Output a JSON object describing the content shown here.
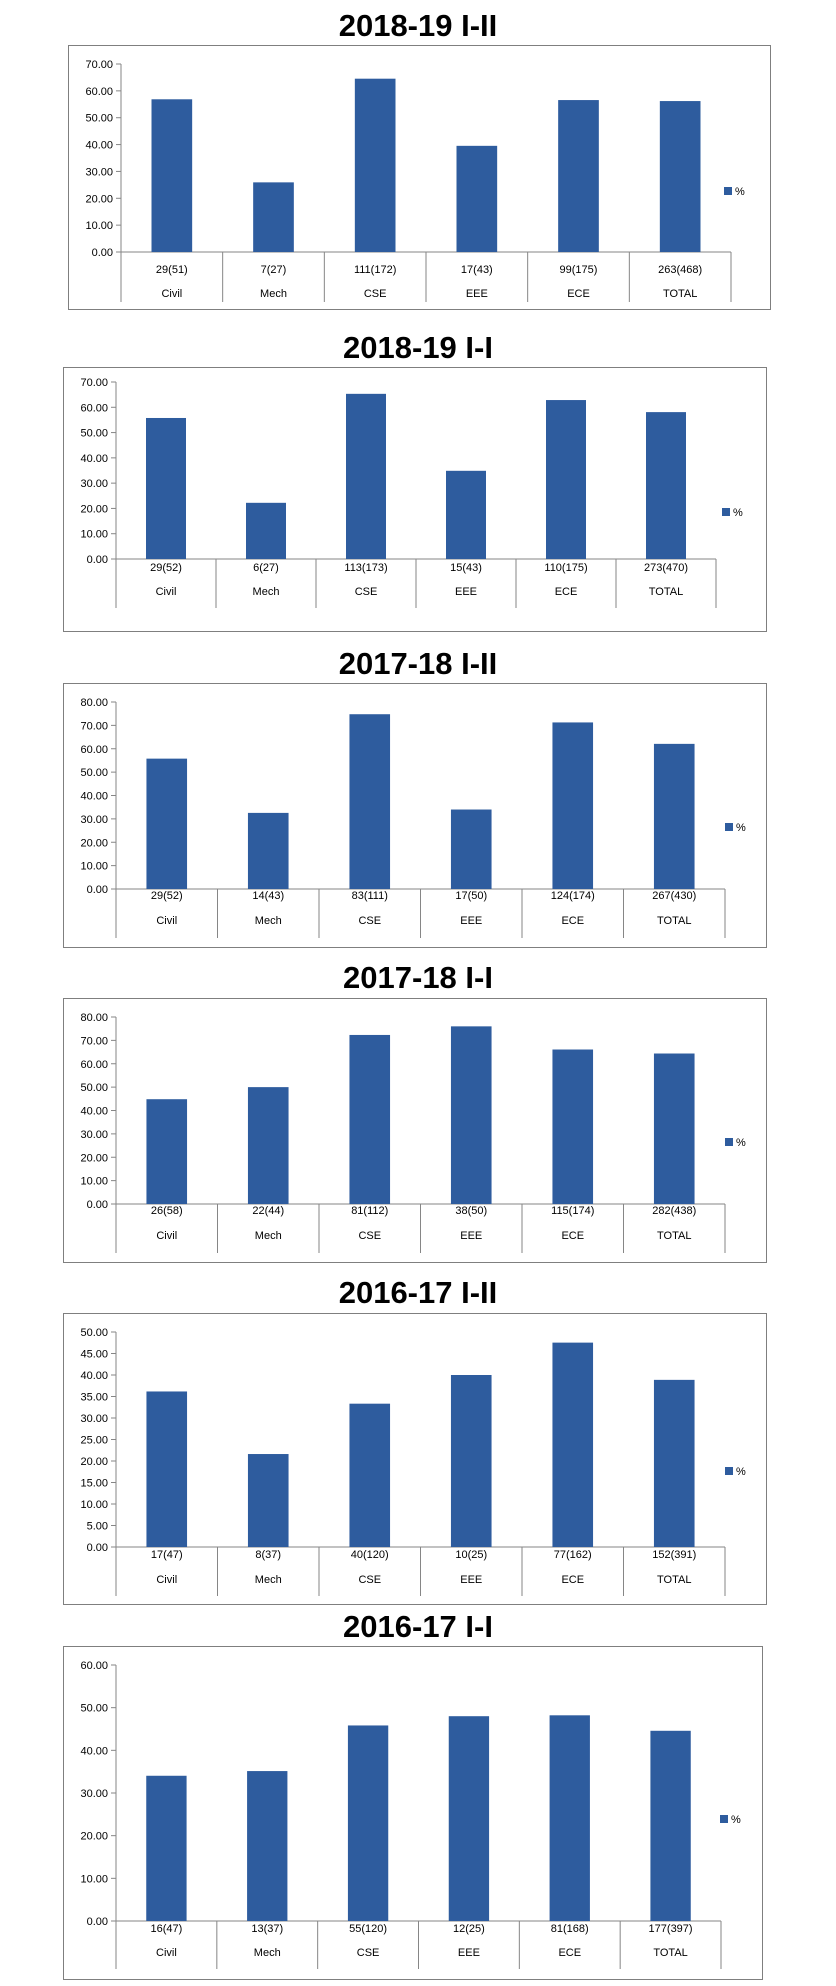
{
  "chart_data": [
    {
      "type": "bar",
      "title": "2018-19 I-II",
      "categories": [
        "Civil",
        "Mech",
        "CSE",
        "EEE",
        "ECE",
        "TOTAL"
      ],
      "counts": [
        "29(51)",
        "7(27)",
        "111(172)",
        "17(43)",
        "99(175)",
        "263(468)"
      ],
      "series": [
        {
          "name": "%",
          "values": [
            56.86,
            25.93,
            64.53,
            39.53,
            56.57,
            56.2
          ]
        }
      ],
      "ylim": [
        0,
        70
      ],
      "yticks": [
        "0.00",
        "10.00",
        "20.00",
        "30.00",
        "40.00",
        "50.00",
        "60.00",
        "70.00"
      ],
      "legend": "right",
      "color": "#2e5c9e"
    },
    {
      "type": "bar",
      "title": "2018-19 I-I",
      "categories": [
        "Civil",
        "Mech",
        "CSE",
        "EEE",
        "ECE",
        "TOTAL"
      ],
      "counts": [
        "29(52)",
        "6(27)",
        "113(173)",
        "15(43)",
        "110(175)",
        "273(470)"
      ],
      "series": [
        {
          "name": "%",
          "values": [
            55.77,
            22.22,
            65.32,
            34.88,
            62.86,
            58.09
          ]
        }
      ],
      "ylim": [
        0,
        70
      ],
      "yticks": [
        "0.00",
        "10.00",
        "20.00",
        "30.00",
        "40.00",
        "50.00",
        "60.00",
        "70.00"
      ],
      "legend": "right",
      "color": "#2e5c9e"
    },
    {
      "type": "bar",
      "title": "2017-18 I-II",
      "categories": [
        "Civil",
        "Mech",
        "CSE",
        "EEE",
        "ECE",
        "TOTAL"
      ],
      "counts": [
        "29(52)",
        "14(43)",
        "83(111)",
        "17(50)",
        "124(174)",
        "267(430)"
      ],
      "series": [
        {
          "name": "%",
          "values": [
            55.77,
            32.56,
            74.77,
            34.0,
            71.26,
            62.09
          ]
        }
      ],
      "ylim": [
        0,
        80
      ],
      "yticks": [
        "0.00",
        "10.00",
        "20.00",
        "30.00",
        "40.00",
        "50.00",
        "60.00",
        "70.00",
        "80.00"
      ],
      "legend": "right",
      "color": "#2e5c9e"
    },
    {
      "type": "bar",
      "title": "2017-18 I-I",
      "categories": [
        "Civil",
        "Mech",
        "CSE",
        "EEE",
        "ECE",
        "TOTAL"
      ],
      "counts": [
        "26(58)",
        "22(44)",
        "81(112)",
        "38(50)",
        "115(174)",
        "282(438)"
      ],
      "series": [
        {
          "name": "%",
          "values": [
            44.83,
            50.0,
            72.32,
            76.0,
            66.09,
            64.38
          ]
        }
      ],
      "ylim": [
        0,
        80
      ],
      "yticks": [
        "0.00",
        "10.00",
        "20.00",
        "30.00",
        "40.00",
        "50.00",
        "60.00",
        "70.00",
        "80.00"
      ],
      "legend": "right",
      "color": "#2e5c9e"
    },
    {
      "type": "bar",
      "title": "2016-17 I-II",
      "categories": [
        "Civil",
        "Mech",
        "CSE",
        "EEE",
        "ECE",
        "TOTAL"
      ],
      "counts": [
        "17(47)",
        "8(37)",
        "40(120)",
        "10(25)",
        "77(162)",
        "152(391)"
      ],
      "series": [
        {
          "name": "%",
          "values": [
            36.17,
            21.62,
            33.33,
            40.0,
            47.53,
            38.87
          ]
        }
      ],
      "ylim": [
        0,
        50
      ],
      "yticks": [
        "0.00",
        "5.00",
        "10.00",
        "15.00",
        "20.00",
        "25.00",
        "30.00",
        "35.00",
        "40.00",
        "45.00",
        "50.00"
      ],
      "legend": "right",
      "color": "#2e5c9e"
    },
    {
      "type": "bar",
      "title": "2016-17 I-I",
      "categories": [
        "Civil",
        "Mech",
        "CSE",
        "EEE",
        "ECE",
        "TOTAL"
      ],
      "counts": [
        "16(47)",
        "13(37)",
        "55(120)",
        "12(25)",
        "81(168)",
        "177(397)"
      ],
      "series": [
        {
          "name": "%",
          "values": [
            34.04,
            35.14,
            45.83,
            48.0,
            48.21,
            44.58
          ]
        }
      ],
      "ylim": [
        0,
        60
      ],
      "yticks": [
        "0.00",
        "10.00",
        "20.00",
        "30.00",
        "40.00",
        "50.00",
        "60.00"
      ],
      "legend": "right",
      "color": "#2e5c9e"
    }
  ]
}
